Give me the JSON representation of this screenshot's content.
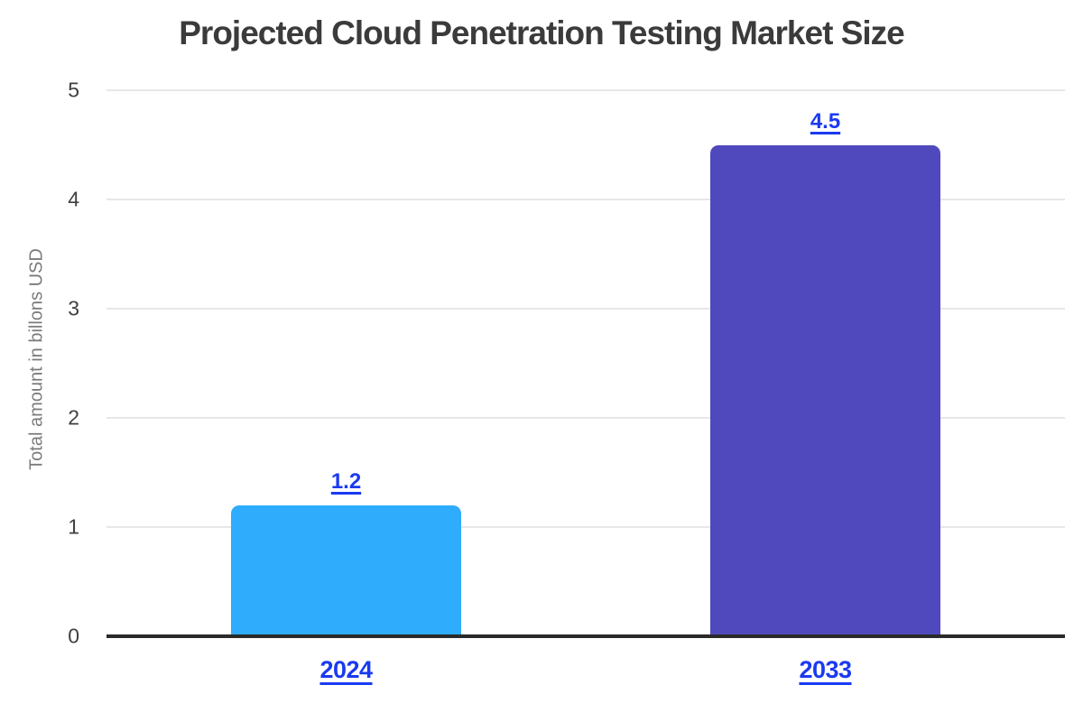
{
  "chart_data": {
    "type": "bar",
    "title": "Projected Cloud Penetration Testing Market Size",
    "ylabel": "Total amount in billons USD",
    "xlabel": "",
    "categories": [
      "2024",
      "2033"
    ],
    "values": [
      1.2,
      4.5
    ],
    "value_labels": [
      "1.2",
      "4.5"
    ],
    "bar_colors": [
      "#2FACFC",
      "#4F49BD"
    ],
    "value_label_color": "#1A3AF0",
    "category_label_color": "#1A3AF0",
    "ylim": [
      0,
      5
    ],
    "yticks": [
      0,
      1,
      2,
      3,
      4,
      5
    ],
    "grid": "horizontal",
    "legend": "none",
    "title_color": "#3b3b3b",
    "axis_line_color": "#2a2a2a",
    "gridline_color": "#e7e7e7"
  }
}
